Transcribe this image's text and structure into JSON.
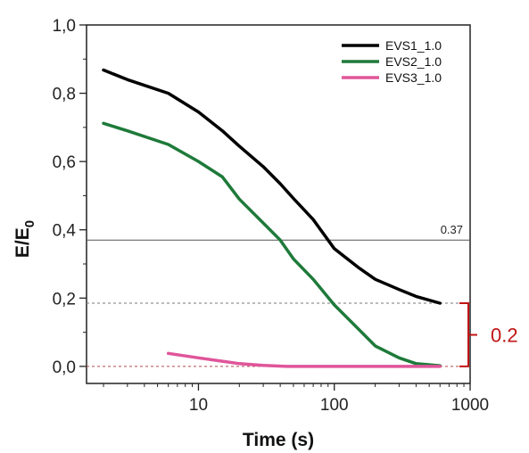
{
  "chart_data": {
    "type": "line",
    "title": "",
    "xlabel": "Time (s)",
    "ylabel_main": "E/E",
    "ylabel_sub": "0",
    "x_scale": "log",
    "xlim": [
      1.5,
      1000
    ],
    "ylim": [
      -0.05,
      1.0
    ],
    "x_ticks": [
      {
        "value": 10,
        "label": "10"
      },
      {
        "value": 100,
        "label": "100"
      },
      {
        "value": 1000,
        "label": "1000"
      }
    ],
    "y_ticks": [
      {
        "value": 0.0,
        "label": "0,0"
      },
      {
        "value": 0.2,
        "label": "0,2"
      },
      {
        "value": 0.4,
        "label": "0,4"
      },
      {
        "value": 0.6,
        "label": "0,6"
      },
      {
        "value": 0.8,
        "label": "0,8"
      },
      {
        "value": 1.0,
        "label": "1,0"
      }
    ],
    "grid": false,
    "legend_position": "top-right",
    "series": [
      {
        "name": "EVS1_1.0",
        "color": "#000000",
        "points": [
          [
            2,
            0.868
          ],
          [
            3,
            0.84
          ],
          [
            6,
            0.8
          ],
          [
            10,
            0.745
          ],
          [
            15,
            0.69
          ],
          [
            20,
            0.645
          ],
          [
            30,
            0.585
          ],
          [
            40,
            0.535
          ],
          [
            50,
            0.492
          ],
          [
            70,
            0.43
          ],
          [
            100,
            0.345
          ],
          [
            150,
            0.29
          ],
          [
            200,
            0.255
          ],
          [
            300,
            0.225
          ],
          [
            400,
            0.205
          ],
          [
            600,
            0.185
          ]
        ]
      },
      {
        "name": "EVS2_1.0",
        "color": "#1e7a3a",
        "points": [
          [
            2,
            0.712
          ],
          [
            3,
            0.69
          ],
          [
            6,
            0.65
          ],
          [
            10,
            0.6
          ],
          [
            15,
            0.555
          ],
          [
            20,
            0.49
          ],
          [
            30,
            0.42
          ],
          [
            40,
            0.37
          ],
          [
            50,
            0.315
          ],
          [
            70,
            0.255
          ],
          [
            100,
            0.18
          ],
          [
            150,
            0.11
          ],
          [
            200,
            0.06
          ],
          [
            300,
            0.025
          ],
          [
            400,
            0.008
          ],
          [
            600,
            0.002
          ]
        ]
      },
      {
        "name": "EVS3_1.0",
        "color": "#e0559a",
        "points": [
          [
            6,
            0.038
          ],
          [
            10,
            0.025
          ],
          [
            15,
            0.015
          ],
          [
            20,
            0.008
          ],
          [
            30,
            0.003
          ],
          [
            45,
            0.0
          ],
          [
            100,
            0.0
          ],
          [
            300,
            0.0
          ],
          [
            600,
            0.0
          ]
        ]
      }
    ],
    "reference_lines": [
      {
        "y": 0.37,
        "style": "solid",
        "color": "#555555",
        "label": "0.37"
      },
      {
        "y": 0.185,
        "style": "dashed",
        "color": "#777777"
      },
      {
        "y": 0.0,
        "style": "dashed",
        "color": "#b04a4a"
      }
    ],
    "bracket": {
      "y_low": 0.0,
      "y_high": 0.185,
      "label": "0.2",
      "color": "#c01414"
    }
  }
}
